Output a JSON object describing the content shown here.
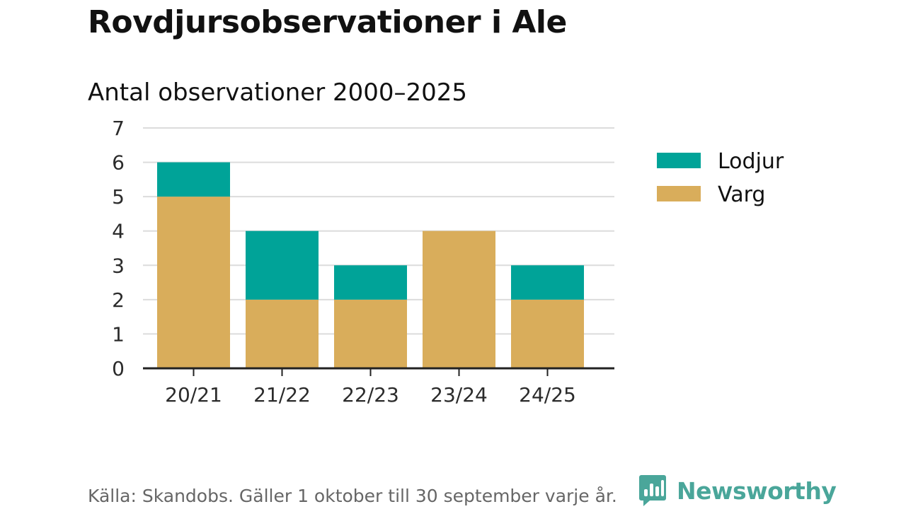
{
  "header": {
    "title": "Rovdjursobservationer i Ale",
    "subtitle": "Antal observationer 2000–2025"
  },
  "footer": {
    "source": "Källa: Skandobs. Gäller 1 oktober till 30 september varje år.",
    "brand": "Newsworthy"
  },
  "colors": {
    "lodjur": "#00a398",
    "varg": "#d9ad5b",
    "grid": "#dcdcdc",
    "axis": "#222222",
    "brand": "#4aa69a"
  },
  "chart_data": {
    "type": "bar",
    "stacked": true,
    "title": "Rovdjursobservationer i Ale",
    "subtitle": "Antal observationer 2000–2025",
    "categories": [
      "20/21",
      "21/22",
      "22/23",
      "23/24",
      "24/25"
    ],
    "series": [
      {
        "name": "Varg",
        "values": [
          5,
          2,
          2,
          4,
          2
        ],
        "color": "#d9ad5b"
      },
      {
        "name": "Lodjur",
        "values": [
          1,
          2,
          1,
          0,
          1
        ],
        "color": "#00a398"
      }
    ],
    "legend_order": [
      "Lodjur",
      "Varg"
    ],
    "yticks": [
      "0",
      "1",
      "2",
      "3",
      "4",
      "5",
      "6",
      "7"
    ],
    "ylim": [
      0,
      7
    ],
    "grid": true,
    "legend_position": "right"
  }
}
